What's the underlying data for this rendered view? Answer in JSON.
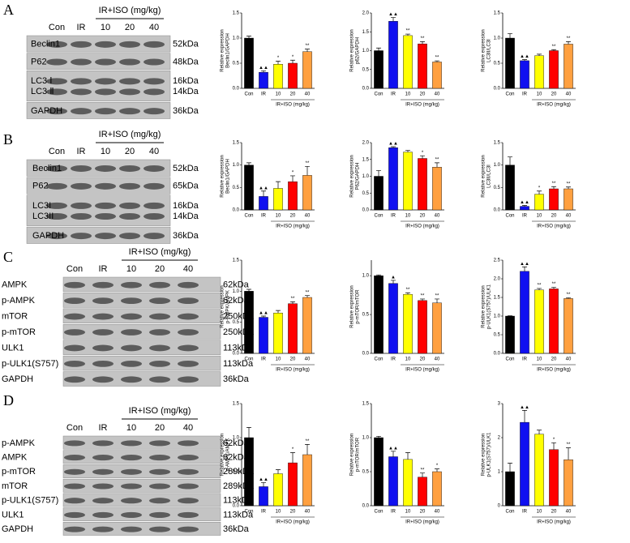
{
  "panels": [
    {
      "letter": "A",
      "lanes": [
        "Con",
        "IR",
        "10",
        "20",
        "40"
      ],
      "group": "IR+ISO (mg/kg)",
      "rows": [
        {
          "labels": [
            "Beclin1"
          ],
          "kda": [
            "52kDa"
          ]
        },
        {
          "labels": [
            "P62"
          ],
          "kda": [
            "48kDa"
          ]
        },
        {
          "labels": [
            "LC3 Ⅰ",
            "LC3 Ⅱ"
          ],
          "kda": [
            "16kDa",
            "14kDa"
          ]
        },
        {
          "labels": [
            "GAPDH"
          ],
          "kda": [
            "36kDa"
          ]
        }
      ]
    },
    {
      "letter": "B",
      "lanes": [
        "Con",
        "IR",
        "10",
        "20",
        "40"
      ],
      "group": "IR+ISO (mg/kg)",
      "rows": [
        {
          "labels": [
            "Beclin1"
          ],
          "kda": [
            "52kDa"
          ]
        },
        {
          "labels": [
            "P62"
          ],
          "kda": [
            "65kDa"
          ]
        },
        {
          "labels": [
            "LC3I",
            "LC3II"
          ],
          "kda": [
            "16kDa",
            "14kDa"
          ]
        },
        {
          "labels": [
            "GAPDH"
          ],
          "kda": [
            "36kDa"
          ]
        }
      ]
    },
    {
      "letter": "C",
      "lanes": [
        "Con",
        "IR",
        "10",
        "20",
        "40"
      ],
      "group": "IR+ISO (mg/kg)",
      "rows": [
        {
          "labels": [
            "AMPK"
          ],
          "kda": [
            "62kDa"
          ]
        },
        {
          "labels": [
            "p-AMPK"
          ],
          "kda": [
            "62kDa"
          ]
        },
        {
          "labels": [
            "mTOR"
          ],
          "kda": [
            "250kDa"
          ]
        },
        {
          "labels": [
            "p-mTOR"
          ],
          "kda": [
            "250kDa"
          ]
        },
        {
          "labels": [
            "ULK1"
          ],
          "kda": [
            "113kDa"
          ]
        },
        {
          "labels": [
            "p-ULK1(S757)"
          ],
          "kda": [
            "113kDa"
          ]
        },
        {
          "labels": [
            "GAPDH"
          ],
          "kda": [
            "36kDa"
          ]
        }
      ]
    },
    {
      "letter": "D",
      "lanes": [
        "Con",
        "IR",
        "10",
        "20",
        "40"
      ],
      "group": "IR+ISO (mg/kg)",
      "rows": [
        {
          "labels": [
            "p-AMPK"
          ],
          "kda": [
            "62kDa"
          ]
        },
        {
          "labels": [
            "AMPK"
          ],
          "kda": [
            "62kDa"
          ]
        },
        {
          "labels": [
            "p-mTOR"
          ],
          "kda": [
            "289kDa"
          ]
        },
        {
          "labels": [
            "mTOR"
          ],
          "kda": [
            "289kDa"
          ]
        },
        {
          "labels": [
            "p-ULK1(S757)"
          ],
          "kda": [
            "113kDa"
          ]
        },
        {
          "labels": [
            "ULK1"
          ],
          "kda": [
            "113kDa"
          ]
        },
        {
          "labels": [
            "GAPDH"
          ],
          "kda": [
            "36kDa"
          ]
        }
      ]
    }
  ],
  "chart_data": [
    {
      "type": "bar",
      "ylabel": [
        "Relative expression",
        "Beclin1/GAPDH"
      ],
      "categories": [
        "Con",
        "IR",
        "10",
        "20",
        "40"
      ],
      "group_label": "IR+ISO (mg/kg)",
      "values": [
        1.0,
        0.32,
        0.48,
        0.5,
        0.73
      ],
      "errors": [
        0.04,
        0.03,
        0.06,
        0.06,
        0.05
      ],
      "significance": [
        null,
        "▲▲",
        "*",
        "*",
        "**"
      ],
      "colors": [
        "#000000",
        "#1010f0",
        "#ffff00",
        "#ff0000",
        "#ffa040"
      ],
      "ylim": [
        0,
        1.5
      ],
      "yticks": [
        {
          "value": 0,
          "label": "0.0"
        },
        {
          "value": 0.5,
          "label": "0.5"
        },
        {
          "value": 1,
          "label": "1.0"
        },
        {
          "value": 1.5,
          "label": "1.5"
        }
      ]
    },
    {
      "type": "bar",
      "ylabel": [
        "Relative expression",
        "p62/GAPDH"
      ],
      "categories": [
        "Con",
        "IR",
        "10",
        "20",
        "40"
      ],
      "group_label": "IR+ISO (mg/kg)",
      "values": [
        1.0,
        1.78,
        1.4,
        1.18,
        0.7
      ],
      "errors": [
        0.07,
        0.1,
        0.04,
        0.06,
        0.03
      ],
      "significance": [
        null,
        "▲▲",
        "**",
        "**",
        "**"
      ],
      "colors": [
        "#000000",
        "#1010f0",
        "#ffff00",
        "#ff0000",
        "#ffa040"
      ],
      "ylim": [
        0,
        2
      ],
      "yticks": [
        {
          "value": 0,
          "label": "0.0"
        },
        {
          "value": 0.5,
          "label": "0.5"
        },
        {
          "value": 1,
          "label": "1.0"
        },
        {
          "value": 1.5,
          "label": "1.5"
        },
        {
          "value": 2,
          "label": "2.0"
        }
      ]
    },
    {
      "type": "bar",
      "ylabel": [
        "Relative expression",
        "LC3II/LC3I"
      ],
      "categories": [
        "Con",
        "IR",
        "10",
        "20",
        "40"
      ],
      "group_label": "IR+ISO (mg/kg)",
      "values": [
        1.0,
        0.55,
        0.65,
        0.75,
        0.88
      ],
      "errors": [
        0.09,
        0.02,
        0.03,
        0.02,
        0.05
      ],
      "significance": [
        null,
        "▲▲",
        null,
        "**",
        "**"
      ],
      "colors": [
        "#000000",
        "#1010f0",
        "#ffff00",
        "#ff0000",
        "#ffa040"
      ],
      "ylim": [
        0,
        1.5
      ],
      "yticks": [
        {
          "value": 0,
          "label": "0.0"
        },
        {
          "value": 0.5,
          "label": "0.5"
        },
        {
          "value": 1,
          "label": "1.0"
        },
        {
          "value": 1.5,
          "label": "1.5"
        }
      ]
    },
    {
      "type": "bar",
      "ylabel": [
        "Relative expression",
        "Beclin1/GAPDH"
      ],
      "categories": [
        "Con",
        "IR",
        "10",
        "20",
        "40"
      ],
      "group_label": "IR+ISO (mg/kg)",
      "values": [
        1.0,
        0.3,
        0.48,
        0.63,
        0.77
      ],
      "errors": [
        0.05,
        0.12,
        0.15,
        0.13,
        0.2
      ],
      "significance": [
        null,
        "▲▲",
        null,
        "*",
        "**"
      ],
      "colors": [
        "#000000",
        "#1010f0",
        "#ffff00",
        "#ff0000",
        "#ffa040"
      ],
      "ylim": [
        0,
        1.5
      ],
      "yticks": [
        {
          "value": 0,
          "label": "0.0"
        },
        {
          "value": 0.5,
          "label": "0.5"
        },
        {
          "value": 1,
          "label": "1.0"
        },
        {
          "value": 1.5,
          "label": "1.5"
        }
      ]
    },
    {
      "type": "bar",
      "ylabel": [
        "Relative expression",
        "P62/GAPDH"
      ],
      "categories": [
        "Con",
        "IR",
        "10",
        "20",
        "40"
      ],
      "group_label": "IR+ISO (mg/kg)",
      "values": [
        1.0,
        1.85,
        1.72,
        1.53,
        1.27
      ],
      "errors": [
        0.17,
        0.03,
        0.05,
        0.08,
        0.13
      ],
      "significance": [
        null,
        "▲▲",
        null,
        "*",
        "**"
      ],
      "colors": [
        "#000000",
        "#1010f0",
        "#ffff00",
        "#ff0000",
        "#ffa040"
      ],
      "ylim": [
        0,
        2
      ],
      "yticks": [
        {
          "value": 0,
          "label": "0.0"
        },
        {
          "value": 0.5,
          "label": "0.5"
        },
        {
          "value": 1,
          "label": "1.0"
        },
        {
          "value": 1.5,
          "label": "1.5"
        },
        {
          "value": 2,
          "label": "2.0"
        }
      ]
    },
    {
      "type": "bar",
      "ylabel": [
        "Relative expression",
        "LC3II/LC3I"
      ],
      "categories": [
        "Con",
        "IR",
        "10",
        "20",
        "40"
      ],
      "group_label": "IR+ISO (mg/kg)",
      "values": [
        1.0,
        0.08,
        0.35,
        0.47,
        0.47
      ],
      "errors": [
        0.18,
        0.02,
        0.07,
        0.05,
        0.04
      ],
      "significance": [
        null,
        "▲▲",
        "*",
        "**",
        "**"
      ],
      "colors": [
        "#000000",
        "#1010f0",
        "#ffff00",
        "#ff0000",
        "#ffa040"
      ],
      "ylim": [
        0,
        1.5
      ],
      "yticks": [
        {
          "value": 0,
          "label": "0.0"
        },
        {
          "value": 0.5,
          "label": "0.5"
        },
        {
          "value": 1,
          "label": "1.0"
        },
        {
          "value": 1.5,
          "label": "1.5"
        }
      ]
    },
    {
      "type": "bar",
      "ylabel": [
        "Relative expression",
        "p-AMPK/AMPK"
      ],
      "categories": [
        "Con",
        "IR",
        "10",
        "20",
        "40"
      ],
      "group_label": "IR+ISO (mg/kg)",
      "values": [
        1.0,
        0.58,
        0.65,
        0.8,
        0.9
      ],
      "errors": [
        0.03,
        0.02,
        0.04,
        0.03,
        0.03
      ],
      "significance": [
        null,
        "▲▲",
        null,
        "**",
        "**"
      ],
      "colors": [
        "#000000",
        "#1010f0",
        "#ffff00",
        "#ff0000",
        "#ffa040"
      ],
      "ylim": [
        0,
        1.5
      ],
      "yticks": [
        {
          "value": 0,
          "label": "0.0"
        },
        {
          "value": 0.5,
          "label": "0.5"
        },
        {
          "value": 1,
          "label": "1.0"
        },
        {
          "value": 1.5,
          "label": "1.5"
        }
      ]
    },
    {
      "type": "bar",
      "ylabel": [
        "Relative expression",
        "p-mTOR/mTOR"
      ],
      "categories": [
        "Con",
        "IR",
        "10",
        "20",
        "40"
      ],
      "group_label": "IR+ISO (mg/kg)",
      "values": [
        1.0,
        0.9,
        0.76,
        0.68,
        0.65
      ],
      "errors": [
        0.01,
        0.04,
        0.02,
        0.02,
        0.05
      ],
      "significance": [
        null,
        "▲",
        "**",
        "**",
        "**"
      ],
      "colors": [
        "#000000",
        "#1010f0",
        "#ffff00",
        "#ff0000",
        "#ffa040"
      ],
      "ylim": [
        0,
        1.2
      ],
      "yticks": [
        {
          "value": 0,
          "label": "0.0"
        },
        {
          "value": 0.5,
          "label": "0.5"
        },
        {
          "value": 1,
          "label": "1.0"
        }
      ]
    },
    {
      "type": "bar",
      "ylabel": [
        "Relative expression",
        "p-ULK1(S757)/ULK1"
      ],
      "categories": [
        "Con",
        "IR",
        "10",
        "20",
        "40"
      ],
      "group_label": "IR+ISO (mg/kg)",
      "values": [
        1.0,
        2.2,
        1.7,
        1.73,
        1.47
      ],
      "errors": [
        0.01,
        0.12,
        0.04,
        0.04,
        0.02
      ],
      "significance": [
        null,
        "▲▲",
        "**",
        "**",
        "**"
      ],
      "colors": [
        "#000000",
        "#1010f0",
        "#ffff00",
        "#ff0000",
        "#ffa040"
      ],
      "ylim": [
        0,
        2.5
      ],
      "yticks": [
        {
          "value": 0,
          "label": "0.0"
        },
        {
          "value": 0.5,
          "label": "0.5"
        },
        {
          "value": 1,
          "label": "1.0"
        },
        {
          "value": 1.5,
          "label": "1.5"
        },
        {
          "value": 2,
          "label": "2.0"
        },
        {
          "value": 2.5,
          "label": "2.5"
        }
      ]
    },
    {
      "type": "bar",
      "ylabel": [
        "Relative expression",
        "p-AMPK/AMPK"
      ],
      "categories": [
        "Con",
        "IR",
        "10",
        "20",
        "40"
      ],
      "group_label": "IR+ISO (mg/kg)",
      "values": [
        1.0,
        0.28,
        0.47,
        0.63,
        0.75
      ],
      "errors": [
        0.15,
        0.06,
        0.06,
        0.15,
        0.15
      ],
      "significance": [
        null,
        "▲▲",
        null,
        "*",
        "**"
      ],
      "colors": [
        "#000000",
        "#1010f0",
        "#ffff00",
        "#ff0000",
        "#ffa040"
      ],
      "ylim": [
        0,
        1.5
      ],
      "yticks": [
        {
          "value": 0,
          "label": "0.0"
        },
        {
          "value": 0.5,
          "label": "0.5"
        },
        {
          "value": 1,
          "label": "1.0"
        },
        {
          "value": 1.5,
          "label": "1.5"
        }
      ]
    },
    {
      "type": "bar",
      "ylabel": [
        "Relative expression",
        "p-mTOR/mTOR"
      ],
      "categories": [
        "Con",
        "IR",
        "10",
        "20",
        "40"
      ],
      "group_label": "IR+ISO (mg/kg)",
      "values": [
        1.0,
        0.72,
        0.68,
        0.42,
        0.5
      ],
      "errors": [
        0.02,
        0.08,
        0.1,
        0.06,
        0.04
      ],
      "significance": [
        null,
        "▲▲",
        null,
        "**",
        "*"
      ],
      "colors": [
        "#000000",
        "#1010f0",
        "#ffff00",
        "#ff0000",
        "#ffa040"
      ],
      "ylim": [
        0,
        1.5
      ],
      "yticks": [
        {
          "value": 0,
          "label": "0.0"
        },
        {
          "value": 0.5,
          "label": "0.5"
        },
        {
          "value": 1,
          "label": "1.0"
        },
        {
          "value": 1.5,
          "label": "1.5"
        }
      ]
    },
    {
      "type": "bar",
      "ylabel": [
        "Relative expression",
        "p-ULK1(S757)/ULK1"
      ],
      "categories": [
        "Con",
        "IR",
        "10",
        "20",
        "40"
      ],
      "group_label": "IR+ISO (mg/kg)",
      "values": [
        1.0,
        2.45,
        2.1,
        1.65,
        1.35
      ],
      "errors": [
        0.25,
        0.35,
        0.12,
        0.2,
        0.35
      ],
      "significance": [
        null,
        "▲▲",
        null,
        "*",
        "**"
      ],
      "colors": [
        "#000000",
        "#1010f0",
        "#ffff00",
        "#ff0000",
        "#ffa040"
      ],
      "ylim": [
        0,
        3
      ],
      "yticks": [
        0,
        1,
        2,
        3
      ]
    }
  ]
}
